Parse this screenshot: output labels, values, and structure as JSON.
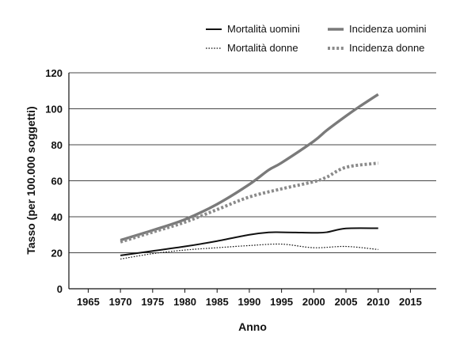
{
  "chart_data": {
    "type": "line",
    "xlabel": "Anno",
    "ylabel": "Tasso (per 100.000 soggetti)",
    "xlim": [
      1962,
      2019
    ],
    "ylim": [
      0,
      120
    ],
    "xticks": [
      1965,
      1970,
      1975,
      1980,
      1985,
      1990,
      1995,
      2000,
      2005,
      2010,
      2015
    ],
    "yticks": [
      0,
      20,
      40,
      60,
      80,
      100,
      120
    ],
    "grid": "horizontal",
    "legend_position": "top-right",
    "series": [
      {
        "name": "Mortalità uomini",
        "style": "solid-thin",
        "color": "#111111",
        "x": [
          1970,
          1975,
          1980,
          1985,
          1990,
          1993,
          1995,
          2000,
          2002,
          2005,
          2010
        ],
        "y": [
          18.5,
          21,
          23.5,
          26.5,
          30,
          31.3,
          31.4,
          31.1,
          31.4,
          33.5,
          33.6
        ]
      },
      {
        "name": "Incidenza uomini",
        "style": "solid-thick",
        "color": "#7a7a7a",
        "x": [
          1970,
          1975,
          1980,
          1985,
          1990,
          1993,
          1995,
          2000,
          2002,
          2005,
          2007,
          2010
        ],
        "y": [
          27,
          32.5,
          38.5,
          47,
          58,
          66,
          70,
          82,
          88,
          96,
          101,
          108
        ]
      },
      {
        "name": "Mortalità donne",
        "style": "dotted-thin",
        "color": "#111111",
        "x": [
          1970,
          1975,
          1980,
          1985,
          1990,
          1995,
          2000,
          2005,
          2010
        ],
        "y": [
          16.5,
          19.5,
          21.5,
          22.8,
          24,
          24.8,
          22.8,
          23.5,
          21.8
        ]
      },
      {
        "name": "Incidenza donne",
        "style": "dotted-thick",
        "color": "#8a8a8a",
        "x": [
          1970,
          1975,
          1980,
          1985,
          1990,
          1995,
          2000,
          2002,
          2005,
          2010
        ],
        "y": [
          26,
          31.5,
          37,
          44,
          51,
          55.5,
          59.5,
          62,
          67.5,
          69.8
        ]
      }
    ]
  }
}
